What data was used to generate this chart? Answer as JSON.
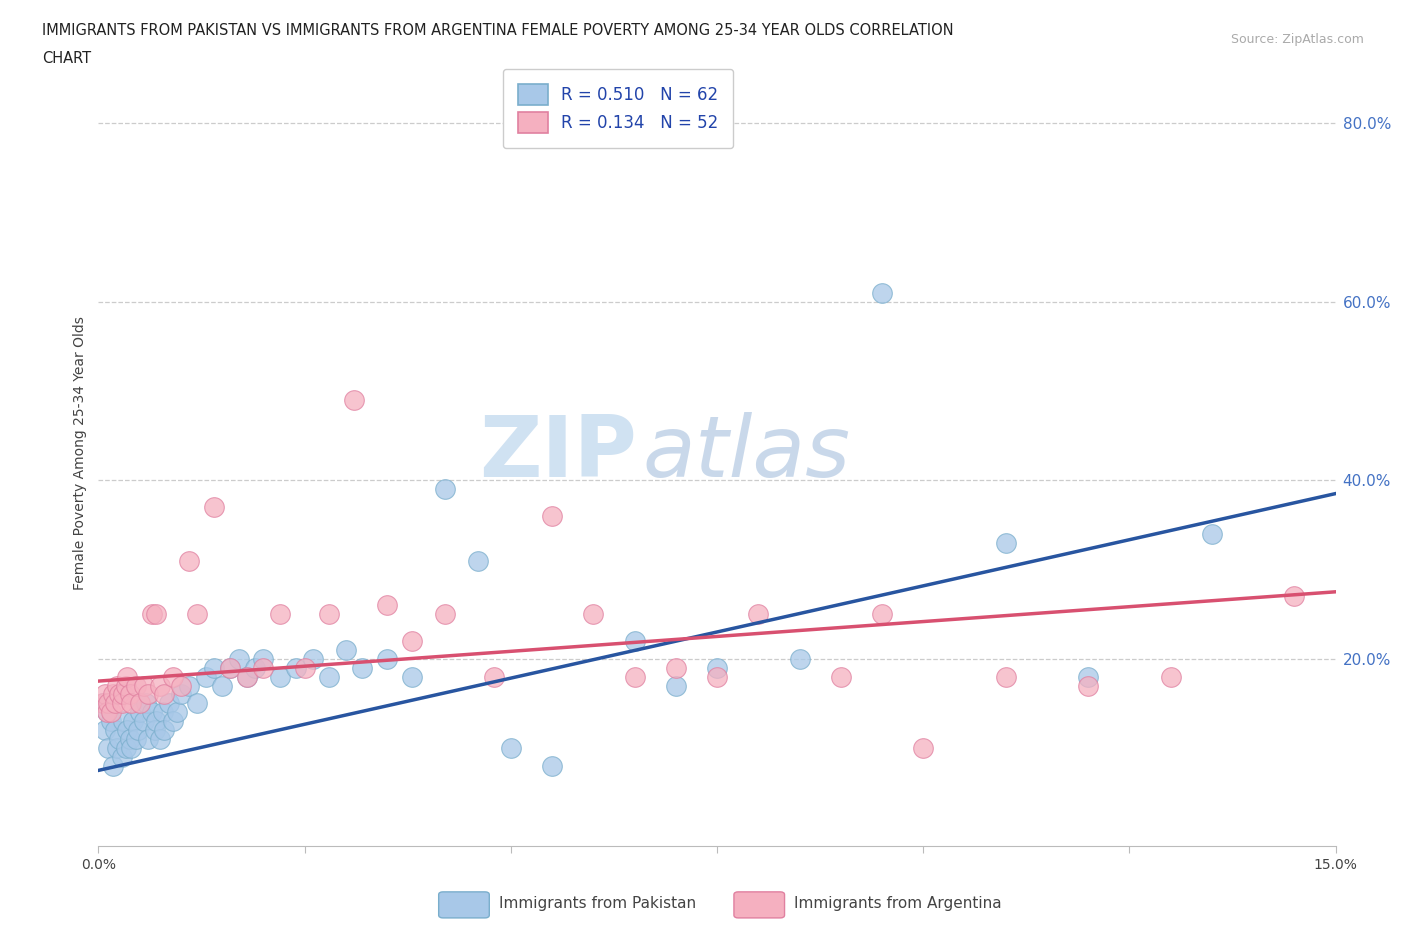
{
  "title": "IMMIGRANTS FROM PAKISTAN VS IMMIGRANTS FROM ARGENTINA FEMALE POVERTY AMONG 25-34 YEAR OLDS CORRELATION\nCHART",
  "source_text": "Source: ZipAtlas.com",
  "ylabel": "Female Poverty Among 25-34 Year Olds",
  "xlim": [
    0.0,
    15.0
  ],
  "ylim": [
    -1.0,
    87.0
  ],
  "right_yticks": [
    20.0,
    40.0,
    60.0,
    80.0
  ],
  "right_ytick_labels": [
    "20.0%",
    "40.0%",
    "60.0%",
    "80.0%"
  ],
  "pakistan_R": "0.510",
  "pakistan_N": "62",
  "argentina_R": "0.134",
  "argentina_N": "52",
  "pakistan_color": "#a8c8e8",
  "argentina_color": "#f5b0c0",
  "pakistan_line_color": "#2855a0",
  "argentina_line_color": "#d85070",
  "legend_label_pakistan": "Immigrants from Pakistan",
  "legend_label_argentina": "Immigrants from Argentina",
  "watermark_zip": "ZIP",
  "watermark_atlas": "atlas",
  "pakistan_x": [
    0.05,
    0.08,
    0.1,
    0.12,
    0.15,
    0.18,
    0.2,
    0.22,
    0.25,
    0.28,
    0.3,
    0.33,
    0.35,
    0.38,
    0.4,
    0.42,
    0.45,
    0.48,
    0.5,
    0.55,
    0.58,
    0.6,
    0.65,
    0.68,
    0.7,
    0.75,
    0.78,
    0.8,
    0.85,
    0.9,
    0.95,
    1.0,
    1.1,
    1.2,
    1.3,
    1.4,
    1.5,
    1.6,
    1.7,
    1.8,
    1.9,
    2.0,
    2.2,
    2.4,
    2.6,
    2.8,
    3.0,
    3.2,
    3.5,
    3.8,
    4.2,
    4.6,
    5.0,
    5.5,
    6.5,
    7.0,
    7.5,
    8.5,
    9.5,
    11.0,
    12.0,
    13.5
  ],
  "pakistan_y": [
    15,
    12,
    14,
    10,
    13,
    8,
    12,
    10,
    11,
    9,
    13,
    10,
    12,
    11,
    10,
    13,
    11,
    12,
    14,
    13,
    15,
    11,
    14,
    12,
    13,
    11,
    14,
    12,
    15,
    13,
    14,
    16,
    17,
    15,
    18,
    19,
    17,
    19,
    20,
    18,
    19,
    20,
    18,
    19,
    20,
    18,
    21,
    19,
    20,
    18,
    39,
    31,
    10,
    8,
    22,
    17,
    19,
    20,
    61,
    33,
    18,
    34
  ],
  "argentina_x": [
    0.05,
    0.08,
    0.1,
    0.12,
    0.15,
    0.18,
    0.2,
    0.22,
    0.25,
    0.28,
    0.3,
    0.33,
    0.35,
    0.38,
    0.4,
    0.45,
    0.5,
    0.55,
    0.6,
    0.65,
    0.7,
    0.75,
    0.8,
    0.9,
    1.0,
    1.1,
    1.2,
    1.4,
    1.6,
    1.8,
    2.0,
    2.2,
    2.5,
    2.8,
    3.1,
    3.5,
    3.8,
    4.2,
    4.8,
    5.5,
    6.0,
    6.5,
    7.0,
    7.5,
    8.0,
    9.0,
    9.5,
    10.0,
    11.0,
    12.0,
    13.0,
    14.5
  ],
  "argentina_y": [
    15,
    16,
    14,
    15,
    14,
    16,
    15,
    17,
    16,
    15,
    16,
    17,
    18,
    16,
    15,
    17,
    15,
    17,
    16,
    25,
    25,
    17,
    16,
    18,
    17,
    31,
    25,
    37,
    19,
    18,
    19,
    25,
    19,
    25,
    49,
    26,
    22,
    25,
    18,
    36,
    25,
    18,
    19,
    18,
    25,
    18,
    25,
    10,
    18,
    17,
    18,
    27
  ],
  "pk_line_x": [
    0,
    15
  ],
  "pk_line_y": [
    7.5,
    38.5
  ],
  "ar_line_x": [
    0,
    15
  ],
  "ar_line_y": [
    17.5,
    27.5
  ]
}
